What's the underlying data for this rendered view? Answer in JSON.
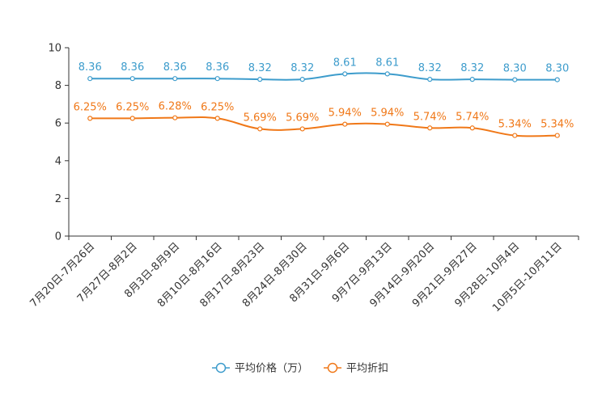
{
  "chart_data": {
    "type": "line",
    "title": "",
    "xlabel": "",
    "ylabel": "",
    "ylim": [
      0,
      10
    ],
    "yticks": [
      0,
      2,
      4,
      6,
      8,
      10
    ],
    "categories": [
      "7月20日-7月26日",
      "7月27日-8月2日",
      "8月3日-8月9日",
      "8月10日-8月16日",
      "8月17日-8月23日",
      "8月24日-8月30日",
      "8月31日-9月6日",
      "9月7日-9月13日",
      "9月14日-9月20日",
      "9月21日-9月27日",
      "9月28日-10月4日",
      "10月5日-10月11日"
    ],
    "series": [
      {
        "name": "平均价格（万）",
        "color": "#3d9ccc",
        "values": [
          8.36,
          8.36,
          8.36,
          8.36,
          8.32,
          8.32,
          8.61,
          8.61,
          8.32,
          8.32,
          8.3,
          8.3
        ],
        "labels": [
          "8.36",
          "8.36",
          "8.36",
          "8.36",
          "8.32",
          "8.32",
          "8.61",
          "8.61",
          "8.32",
          "8.32",
          "8.30",
          "8.30"
        ]
      },
      {
        "name": "平均折扣",
        "color": "#f07818",
        "values": [
          6.25,
          6.25,
          6.28,
          6.25,
          5.69,
          5.69,
          5.94,
          5.94,
          5.74,
          5.74,
          5.34,
          5.34
        ],
        "labels": [
          "6.25%",
          "6.25%",
          "6.28%",
          "6.25%",
          "5.69%",
          "5.69%",
          "5.94%",
          "5.94%",
          "5.74%",
          "5.74%",
          "5.34%",
          "5.34%"
        ]
      }
    ],
    "legend": "bottom",
    "grid": false
  }
}
